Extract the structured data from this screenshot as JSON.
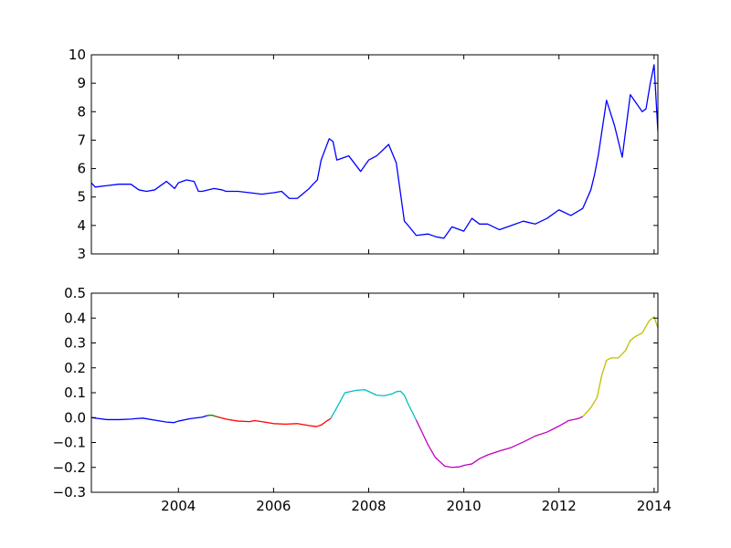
{
  "chart_data": [
    {
      "type": "line",
      "title": "",
      "xlabel": "",
      "ylabel": "",
      "xlim": [
        2002.17,
        2014.08
      ],
      "ylim": [
        3,
        10
      ],
      "yticks": [
        "3",
        "4",
        "5",
        "6",
        "7",
        "8",
        "9",
        "10"
      ],
      "xticks": [],
      "grid": false,
      "legend": "none",
      "series": [
        {
          "color": "#0000ff",
          "x": [
            2002.17,
            2002.25,
            2002.5,
            2002.75,
            2003.0,
            2003.17,
            2003.33,
            2003.5,
            2003.75,
            2003.92,
            2004.0,
            2004.17,
            2004.33,
            2004.42,
            2004.5,
            2004.75,
            2004.92,
            2005.0,
            2005.25,
            2005.5,
            2005.75,
            2006.0,
            2006.17,
            2006.33,
            2006.5,
            2006.75,
            2006.83,
            2006.92,
            2007.0,
            2007.17,
            2007.25,
            2007.33,
            2007.5,
            2007.58,
            2007.83,
            2008.0,
            2008.17,
            2008.42,
            2008.58,
            2008.75,
            2008.83,
            2009.0,
            2009.25,
            2009.42,
            2009.58,
            2009.75,
            2010.0,
            2010.17,
            2010.33,
            2010.5,
            2010.75,
            2011.0,
            2011.25,
            2011.5,
            2011.75,
            2012.0,
            2012.25,
            2012.5,
            2012.67,
            2012.75,
            2012.83,
            2013.0,
            2013.17,
            2013.33,
            2013.5,
            2013.75,
            2013.83,
            2013.92,
            2014.0,
            2014.08
          ],
          "y": [
            5.5,
            5.35,
            5.4,
            5.45,
            5.45,
            5.25,
            5.2,
            5.25,
            5.55,
            5.3,
            5.5,
            5.6,
            5.55,
            5.2,
            5.2,
            5.3,
            5.25,
            5.2,
            5.2,
            5.15,
            5.1,
            5.15,
            5.2,
            4.95,
            4.95,
            5.3,
            5.45,
            5.6,
            6.3,
            7.05,
            6.95,
            6.3,
            6.4,
            6.45,
            5.9,
            6.3,
            6.45,
            6.85,
            6.2,
            4.15,
            4.0,
            3.65,
            3.7,
            3.6,
            3.55,
            3.95,
            3.8,
            4.25,
            4.05,
            4.05,
            3.85,
            4.0,
            4.15,
            4.05,
            4.25,
            4.55,
            4.35,
            4.6,
            5.25,
            5.8,
            6.5,
            8.4,
            7.5,
            6.4,
            8.6,
            8.0,
            8.1,
            9.0,
            9.65,
            7.3
          ]
        }
      ]
    },
    {
      "type": "line",
      "title": "",
      "xlabel": "",
      "ylabel": "",
      "xlim": [
        2002.17,
        2014.08
      ],
      "ylim": [
        -0.3,
        0.5
      ],
      "yticks": [
        "−0.3",
        "−0.2",
        "−0.1",
        "0.0",
        "0.1",
        "0.2",
        "0.3",
        "0.4",
        "0.5"
      ],
      "xticks": [
        "2004",
        "2006",
        "2008",
        "2010",
        "2012",
        "2014"
      ],
      "grid": false,
      "legend": "none",
      "series": [
        {
          "color": "#0000ff",
          "x": [
            2002.17,
            2002.5,
            2002.75,
            2003.0,
            2003.1,
            2003.25,
            2003.5,
            2003.75,
            2003.9,
            2004.0,
            2004.25,
            2004.5,
            2004.6
          ],
          "y": [
            0.0,
            -0.008,
            -0.008,
            -0.006,
            -0.004,
            -0.002,
            -0.01,
            -0.018,
            -0.02,
            -0.014,
            -0.004,
            0.002,
            0.008
          ]
        },
        {
          "color": "#008000",
          "x": [
            2004.6,
            2004.7,
            2004.8
          ],
          "y": [
            0.008,
            0.01,
            0.004
          ]
        },
        {
          "color": "#ff0000",
          "x": [
            2004.8,
            2005.0,
            2005.25,
            2005.5,
            2005.6,
            2005.75,
            2006.0,
            2006.25,
            2006.5,
            2006.75,
            2006.9,
            2007.0,
            2007.1,
            2007.2
          ],
          "y": [
            0.004,
            -0.006,
            -0.014,
            -0.016,
            -0.012,
            -0.016,
            -0.024,
            -0.026,
            -0.024,
            -0.032,
            -0.036,
            -0.03,
            -0.016,
            -0.004
          ]
        },
        {
          "color": "#00bfbf",
          "x": [
            2007.2,
            2007.33,
            2007.5,
            2007.75,
            2007.92,
            2008.0,
            2008.17,
            2008.33,
            2008.5,
            2008.58,
            2008.67,
            2008.75,
            2008.83,
            2009.0
          ],
          "y": [
            -0.004,
            0.04,
            0.1,
            0.11,
            0.112,
            0.105,
            0.09,
            0.088,
            0.096,
            0.104,
            0.106,
            0.09,
            0.055,
            -0.01
          ]
        },
        {
          "color": "#bf00bf",
          "x": [
            2009.0,
            2009.1,
            2009.25,
            2009.4,
            2009.6,
            2009.75,
            2009.9,
            2010.0,
            2010.17,
            2010.33,
            2010.5,
            2010.75,
            2011.0,
            2011.25,
            2011.5,
            2011.75,
            2012.0,
            2012.2,
            2012.4,
            2012.5
          ],
          "y": [
            -0.01,
            -0.05,
            -0.11,
            -0.16,
            -0.195,
            -0.2,
            -0.198,
            -0.192,
            -0.186,
            -0.165,
            -0.15,
            -0.134,
            -0.12,
            -0.098,
            -0.074,
            -0.058,
            -0.034,
            -0.012,
            -0.004,
            0.004
          ]
        },
        {
          "color": "#bfbf00",
          "x": [
            2012.5,
            2012.67,
            2012.8,
            2012.9,
            2013.0,
            2013.1,
            2013.25,
            2013.4,
            2013.5,
            2013.6,
            2013.75,
            2013.9,
            2014.0,
            2014.08
          ],
          "y": [
            0.004,
            0.04,
            0.08,
            0.17,
            0.23,
            0.24,
            0.24,
            0.27,
            0.31,
            0.325,
            0.34,
            0.39,
            0.405,
            0.36
          ]
        }
      ]
    }
  ]
}
